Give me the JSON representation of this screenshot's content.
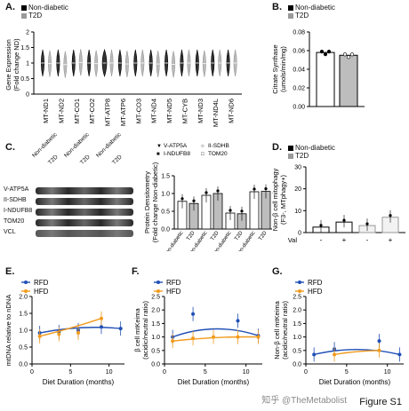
{
  "figure_label": "Figure S1",
  "watermark": "知乎 @TheMetabolist",
  "legend_nd_t2d": {
    "non_diabetic": "Non-diabetic",
    "t2d": "T2D"
  },
  "legend_rfd_hfd": {
    "rfd": "RFD",
    "hfd": "HFD"
  },
  "colors": {
    "black": "#000000",
    "gray": "#9a9a9a",
    "blue": "#1f4fb5",
    "orange": "#f29a1b"
  },
  "panels": {
    "A": {
      "letter": "A."
    },
    "B": {
      "letter": "B."
    },
    "C": {
      "letter": "C."
    },
    "D": {
      "letter": "D."
    },
    "E": {
      "letter": "E."
    },
    "F": {
      "letter": "F."
    },
    "G": {
      "letter": "G."
    }
  },
  "blot": {
    "lanes": [
      "Non-diabetic",
      "T2D",
      "Non-diabetic",
      "T2D",
      "Non-diabetic",
      "T2D"
    ],
    "bands": [
      "V-ATP5A",
      "II-SDHB",
      "I-NDUFB8",
      "TOM20",
      "VCL"
    ]
  },
  "chart_data": [
    {
      "panel": "A",
      "type": "violin",
      "ylabel": "Gene Expression\n(Fold change ND)",
      "ylim": [
        0,
        2
      ],
      "yticks": [
        "0",
        "0.5",
        "1",
        "1.5",
        "2"
      ],
      "categories": [
        "MT-ND1",
        "MT-ND2",
        "MT-CO1",
        "MT-CO2",
        "MT-ATP8",
        "MT-ATP6",
        "MT-CO3",
        "MT-ND4",
        "MT-ND5",
        "MT-CYB",
        "MT-ND3",
        "MT-ND4L",
        "MT-ND6"
      ],
      "series": [
        {
          "name": "Non-diabetic",
          "values": [
            1,
            1,
            1,
            1,
            1,
            1,
            1,
            1,
            1,
            1,
            1,
            1,
            1
          ]
        },
        {
          "name": "T2D",
          "values": [
            0.98,
            0.95,
            1.02,
            0.98,
            1.0,
            0.97,
            1.0,
            0.97,
            0.96,
            1.0,
            0.98,
            1.0,
            1.0
          ]
        }
      ]
    },
    {
      "panel": "B",
      "type": "bar",
      "ylabel": "Citrate Synthase\n(umols/min/mg)",
      "ylim": [
        0,
        0.08
      ],
      "yticks": [
        "0.00",
        "0.02",
        "0.04",
        "0.06",
        "0.08"
      ],
      "categories": [
        "Non-diabetic",
        "T2D"
      ],
      "values": [
        0.058,
        0.055
      ]
    },
    {
      "panel": "C",
      "type": "bar",
      "ylabel": "Protein Densitometry\n(Fold change Non-diabetic)",
      "ylim": [
        0,
        1.5
      ],
      "yticks": [
        "0.0",
        "0.5",
        "1.0",
        "1.5"
      ],
      "legend": [
        "V-ATP5A",
        "II-SDHB",
        "I-NDUFB8",
        "TOM20"
      ],
      "categories": [
        "Non-diabetic",
        "T2D",
        "Non-diabetic",
        "T2D",
        "Non-diabetic",
        "T2D",
        "Non-diabetic",
        "T2D"
      ],
      "values": [
        0.78,
        0.72,
        0.95,
        1.0,
        0.45,
        0.43,
        1.05,
        1.06
      ]
    },
    {
      "panel": "D",
      "type": "bar",
      "ylabel": "Non-β cell mitophagy\n(F3-, MTphagy+)",
      "ylim": [
        0,
        30
      ],
      "yticks": [
        "0",
        "10",
        "20",
        "30"
      ],
      "x_label": "Val",
      "categories": [
        "-",
        "+",
        "-",
        "+"
      ],
      "values": [
        2.5,
        4.8,
        3.2,
        7.0
      ]
    },
    {
      "panel": "E",
      "type": "line",
      "xlabel": "Diet Duration (months)",
      "ylabel": "mtDNA relative to nDNA",
      "xlim": [
        0,
        12
      ],
      "ylim": [
        0,
        2.0
      ],
      "xticks": [
        "0",
        "5",
        "10"
      ],
      "yticks": [
        "0.0",
        "0.5",
        "1.0",
        "1.5",
        "2.0"
      ],
      "series": [
        {
          "name": "RFD",
          "x": [
            1,
            3.5,
            6,
            9,
            11.5
          ],
          "y": [
            0.92,
            0.95,
            1.0,
            1.1,
            1.05
          ]
        },
        {
          "name": "HFD",
          "x": [
            1,
            3.5,
            6,
            9
          ],
          "y": [
            0.82,
            0.88,
            0.92,
            1.35
          ]
        }
      ]
    },
    {
      "panel": "F",
      "type": "line",
      "xlabel": "Diet Duration (months)",
      "ylabel": "β cell mtKeima\n(acidic/neutral ratio)",
      "xlim": [
        0,
        12
      ],
      "ylim": [
        0,
        2.5
      ],
      "xticks": [
        "0",
        "5",
        "10"
      ],
      "yticks": [
        "0.0",
        "0.5",
        "1.0",
        "1.5",
        "2.0",
        "2.5"
      ],
      "series": [
        {
          "name": "RFD",
          "x": [
            1,
            3.5,
            9,
            11.5
          ],
          "y": [
            1.0,
            1.85,
            1.6,
            1.05
          ]
        },
        {
          "name": "HFD",
          "x": [
            1,
            3.5,
            6,
            9,
            11.5
          ],
          "y": [
            0.85,
            0.95,
            1.0,
            1.0,
            1.0
          ]
        }
      ]
    },
    {
      "panel": "G",
      "type": "line",
      "xlabel": "Diet Duration (months)",
      "ylabel": "Non-β cell mtKeima\n(acidic/neutral ratio)",
      "xlim": [
        0,
        12
      ],
      "ylim": [
        0,
        2.5
      ],
      "xticks": [
        "0",
        "5",
        "10"
      ],
      "yticks": [
        "0.0",
        "0.5",
        "1.0",
        "1.5",
        "2.0",
        "2.5"
      ],
      "series": [
        {
          "name": "RFD",
          "x": [
            1,
            3.5,
            9,
            11.5
          ],
          "y": [
            0.35,
            0.55,
            0.85,
            0.35
          ]
        },
        {
          "name": "HFD",
          "x": [
            3.5,
            9
          ],
          "y": [
            0.35,
            0.5
          ]
        }
      ]
    }
  ]
}
